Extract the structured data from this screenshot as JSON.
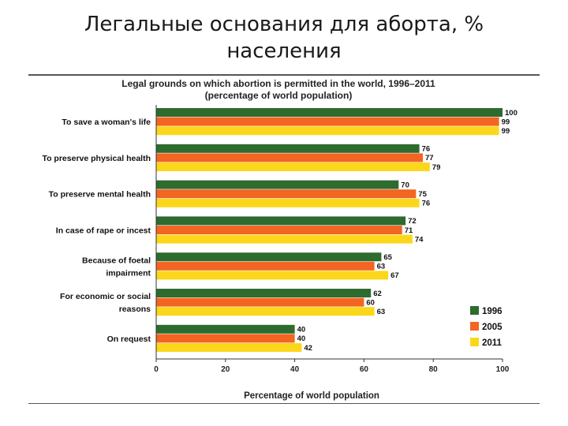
{
  "slide": {
    "title_line1": "Легальные основания для аборта, %",
    "title_line2": "населения"
  },
  "chart_data": {
    "type": "bar",
    "orientation": "horizontal",
    "title": "Legal grounds on which abortion is permitted in the world, 1996–2011",
    "subtitle": "(percentage of world population)",
    "xlabel": "Percentage of world population",
    "xlim": [
      0,
      100
    ],
    "xticks": [
      0,
      20,
      40,
      60,
      80,
      100
    ],
    "grid": false,
    "legend_position": "bottom-right",
    "categories": [
      [
        "To save a woman's life"
      ],
      [
        "To preserve physical health"
      ],
      [
        "To preserve mental health"
      ],
      [
        "In case of rape or incest"
      ],
      [
        "Because of foetal",
        "impairment"
      ],
      [
        "For economic or social",
        "reasons"
      ],
      [
        "On request"
      ]
    ],
    "series": [
      {
        "name": "1996",
        "color": "#2e6b2f",
        "values": [
          100,
          76,
          70,
          72,
          65,
          62,
          40
        ]
      },
      {
        "name": "2005",
        "color": "#f26522",
        "values": [
          99,
          77,
          75,
          71,
          63,
          60,
          40
        ]
      },
      {
        "name": "2011",
        "color": "#fbd71c",
        "values": [
          99,
          79,
          76,
          74,
          67,
          63,
          42
        ]
      }
    ]
  }
}
